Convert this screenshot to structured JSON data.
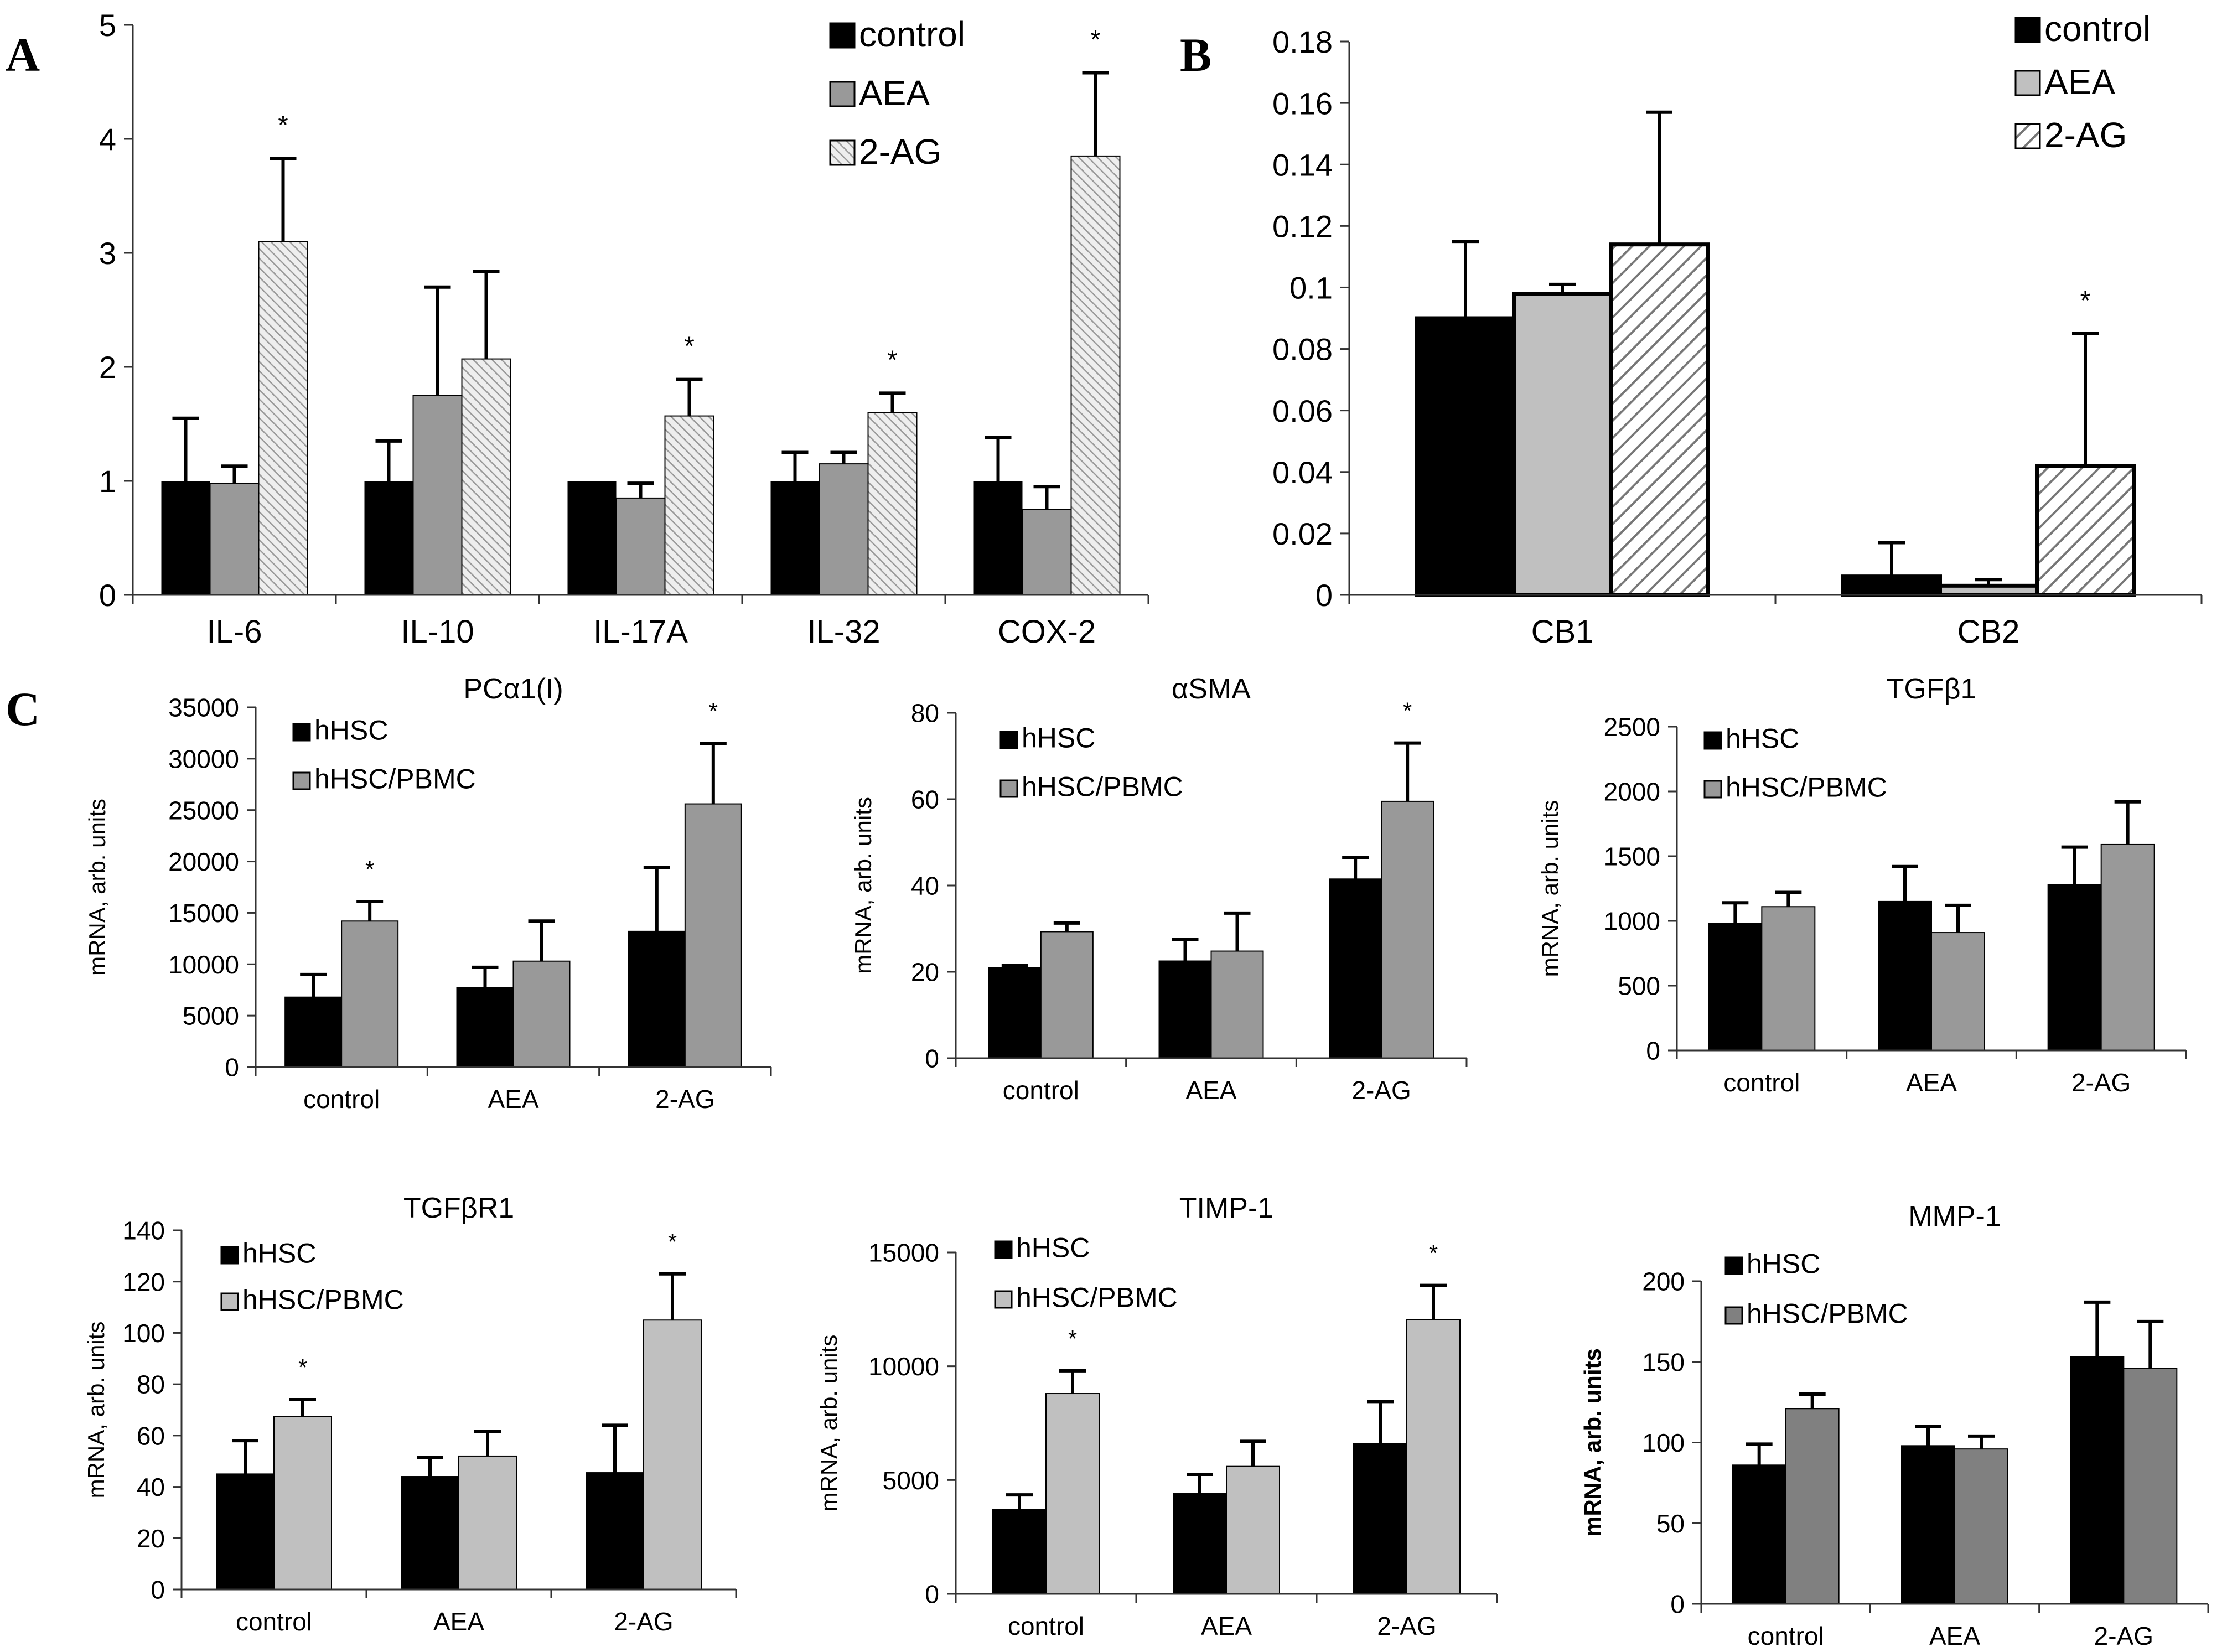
{
  "panels": [
    "A",
    "B",
    "C"
  ],
  "chart_data": [
    {
      "id": "A",
      "type": "bar",
      "title": "",
      "ylabel": "",
      "ylim": [
        0,
        5
      ],
      "yticks": [
        "0",
        "1",
        "2",
        "3",
        "4",
        "5"
      ],
      "categories": [
        "IL-6",
        "IL-10",
        "IL-17A",
        "IL-32",
        "COX-2"
      ],
      "series": [
        {
          "name": "control",
          "style": "solid",
          "color": "#000000",
          "values": [
            1.0,
            1.0,
            1.0,
            1.0,
            1.0
          ],
          "errors": [
            0.55,
            0.35,
            0.0,
            0.25,
            0.38
          ]
        },
        {
          "name": "AEA",
          "style": "solid",
          "color": "#999999",
          "values": [
            0.98,
            1.75,
            0.85,
            1.15,
            0.75
          ],
          "errors": [
            0.15,
            0.95,
            0.13,
            0.1,
            0.2
          ]
        },
        {
          "name": "2-AG",
          "style": "hatch-fine",
          "color": "#dddddd",
          "values": [
            3.1,
            2.07,
            1.57,
            1.6,
            3.85
          ],
          "errors": [
            0.73,
            0.77,
            0.32,
            0.17,
            0.73
          ]
        }
      ],
      "stars": [
        {
          "category": 0,
          "series": 2,
          "text": "*"
        },
        {
          "category": 2,
          "series": 2,
          "text": "*"
        },
        {
          "category": 3,
          "series": 2,
          "text": "*"
        },
        {
          "category": 4,
          "series": 2,
          "text": "*"
        }
      ]
    },
    {
      "id": "B",
      "type": "bar",
      "title": "",
      "ylabel": "",
      "ylim": [
        0,
        0.18
      ],
      "yticks": [
        "0",
        "0.02",
        "0.04",
        "0.06",
        "0.08",
        "0.1",
        "0.12",
        "0.14",
        "0.16",
        "0.18"
      ],
      "categories": [
        "CB1",
        "CB2"
      ],
      "series": [
        {
          "name": "control",
          "style": "solid",
          "color": "#000000",
          "values": [
            0.09,
            0.006
          ],
          "errors": [
            0.025,
            0.011
          ]
        },
        {
          "name": "AEA",
          "style": "solid",
          "color": "#c0c0c0",
          "values": [
            0.098,
            0.003
          ],
          "errors": [
            0.003,
            0.002
          ]
        },
        {
          "name": "2-AG",
          "style": "hatch-coarse",
          "color": "#888888",
          "values": [
            0.114,
            0.042
          ],
          "errors": [
            0.043,
            0.043
          ]
        }
      ],
      "stars": [
        {
          "category": 1,
          "series": 2,
          "text": "*"
        }
      ]
    },
    {
      "id": "C1",
      "type": "bar",
      "title": "PCα1(I)",
      "ylabel": "mRNA, arb. units",
      "ylim": [
        0,
        35000
      ],
      "yticks": [
        "0",
        "5000",
        "10000",
        "15000",
        "20000",
        "25000",
        "30000",
        "35000"
      ],
      "categories": [
        "control",
        "AEA",
        "2-AG"
      ],
      "series": [
        {
          "name": "hHSC",
          "style": "solid",
          "color": "#000000",
          "values": [
            6800,
            7700,
            13200
          ],
          "errors": [
            2200,
            2000,
            6200
          ]
        },
        {
          "name": "hHSC/PBMC",
          "style": "solid",
          "color": "#999999",
          "values": [
            14200,
            10300,
            25600
          ],
          "errors": [
            1900,
            3900,
            5900
          ]
        }
      ],
      "stars": [
        {
          "category": 0,
          "series": 1,
          "text": "*"
        },
        {
          "category": 2,
          "series": 1,
          "text": "*"
        }
      ]
    },
    {
      "id": "C2",
      "type": "bar",
      "title": "αSMA",
      "ylabel": "mRNA, arb. units",
      "ylim": [
        0,
        80
      ],
      "yticks": [
        "0",
        "20",
        "40",
        "60",
        "80"
      ],
      "categories": [
        "control",
        "AEA",
        "2-AG"
      ],
      "series": [
        {
          "name": "hHSC",
          "style": "solid",
          "color": "#000000",
          "values": [
            21,
            22.5,
            41.5
          ],
          "errors": [
            0.5,
            5,
            5
          ]
        },
        {
          "name": "hHSC/PBMC",
          "style": "solid",
          "color": "#999999",
          "values": [
            29.3,
            24.8,
            59.5
          ],
          "errors": [
            2,
            8.8,
            13.5
          ]
        }
      ],
      "stars": [
        {
          "category": 2,
          "series": 1,
          "text": "*"
        }
      ]
    },
    {
      "id": "C3",
      "type": "bar",
      "title": "TGFβ1",
      "ylabel": "mRNA, arb. units",
      "ylim": [
        0,
        2500
      ],
      "yticks": [
        "0",
        "500",
        "1000",
        "1500",
        "2000",
        "2500"
      ],
      "categories": [
        "control",
        "AEA",
        "2-AG"
      ],
      "series": [
        {
          "name": "hHSC",
          "style": "solid",
          "color": "#000000",
          "values": [
            980,
            1150,
            1280
          ],
          "errors": [
            160,
            270,
            290
          ]
        },
        {
          "name": "hHSC/PBMC",
          "style": "solid",
          "color": "#999999",
          "values": [
            1110,
            910,
            1590
          ],
          "errors": [
            110,
            210,
            330
          ]
        }
      ],
      "stars": []
    },
    {
      "id": "C4",
      "type": "bar",
      "title": "TGFβR1",
      "ylabel": "mRNA, arb. units",
      "ylim": [
        0,
        140
      ],
      "yticks": [
        "0",
        "20",
        "40",
        "60",
        "80",
        "100",
        "120",
        "140"
      ],
      "categories": [
        "control",
        "AEA",
        "2-AG"
      ],
      "series": [
        {
          "name": "hHSC",
          "style": "solid",
          "color": "#000000",
          "values": [
            45,
            44,
            45.5
          ],
          "errors": [
            13,
            7.5,
            18.5
          ]
        },
        {
          "name": "hHSC/PBMC",
          "style": "solid",
          "color": "#c0c0c0",
          "values": [
            67.5,
            52,
            105
          ],
          "errors": [
            6.5,
            9.5,
            18
          ]
        }
      ],
      "stars": [
        {
          "category": 0,
          "series": 1,
          "text": "*"
        },
        {
          "category": 2,
          "series": 1,
          "text": "*"
        }
      ]
    },
    {
      "id": "C5",
      "type": "bar",
      "title": "TIMP-1",
      "ylabel": "mRNA, arb. units",
      "ylim": [
        0,
        15000
      ],
      "yticks": [
        "0",
        "5000",
        "10000",
        "15000"
      ],
      "categories": [
        "control",
        "AEA",
        "2-AG"
      ],
      "series": [
        {
          "name": "hHSC",
          "style": "solid",
          "color": "#000000",
          "values": [
            3700,
            4400,
            6600
          ],
          "errors": [
            650,
            850,
            1850
          ]
        },
        {
          "name": "hHSC/PBMC",
          "style": "solid",
          "color": "#c0c0c0",
          "values": [
            8800,
            5600,
            12050
          ],
          "errors": [
            1000,
            1100,
            1500
          ]
        }
      ],
      "stars": [
        {
          "category": 0,
          "series": 1,
          "text": "*"
        },
        {
          "category": 2,
          "series": 1,
          "text": "*"
        }
      ]
    },
    {
      "id": "C6",
      "type": "bar",
      "title": "MMP-1",
      "ylabel": "mRNA, arb. units",
      "ylim": [
        0,
        200
      ],
      "yticks": [
        "0",
        "50",
        "100",
        "150",
        "200"
      ],
      "categories": [
        "control",
        "AEA",
        "2-AG"
      ],
      "series": [
        {
          "name": "hHSC",
          "style": "solid",
          "color": "#000000",
          "values": [
            86,
            98,
            153
          ],
          "errors": [
            13,
            12,
            34
          ]
        },
        {
          "name": "hHSC/PBMC",
          "style": "solid",
          "color": "#808080",
          "values": [
            121,
            96,
            146
          ],
          "errors": [
            9,
            8,
            29
          ]
        }
      ],
      "stars": []
    }
  ]
}
